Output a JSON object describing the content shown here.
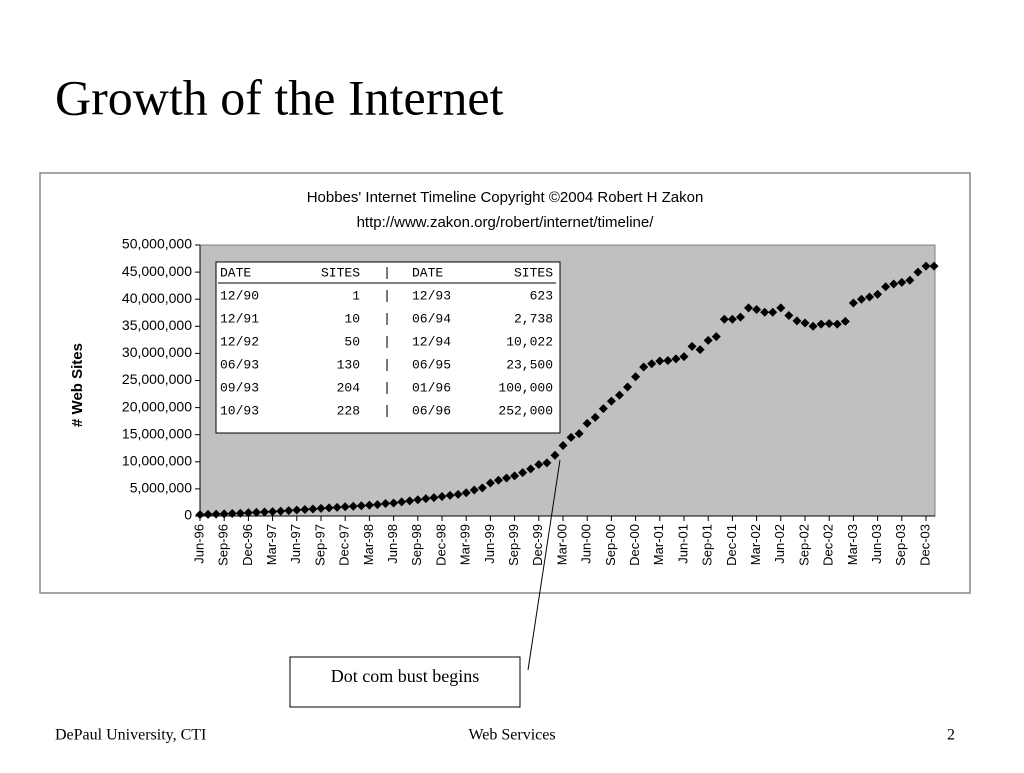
{
  "slide_title": "Growth of the Internet",
  "annotation": "Dot com bust begins",
  "footer": {
    "left": "DePaul University, CTI",
    "center": "Web Services",
    "right": "2"
  },
  "chart_data": {
    "type": "line",
    "show_line": false,
    "marker": "diamond",
    "title": "Hobbes' Internet Timeline Copyright ©2004 Robert H Zakon",
    "subtitle": "http://www.zakon.org/robert/internet/timeline/",
    "y_label": "# Web Sites",
    "plot_background": "#c0c0c0",
    "color": "#000000",
    "categories": [
      "Jun-96",
      null,
      null,
      "Sep-96",
      null,
      null,
      "Dec-96",
      null,
      null,
      "Mar-97",
      null,
      null,
      "Jun-97",
      null,
      null,
      "Sep-97",
      null,
      null,
      "Dec-97",
      null,
      null,
      "Mar-98",
      null,
      null,
      "Jun-98",
      null,
      null,
      "Sep-98",
      null,
      null,
      "Dec-98",
      null,
      null,
      "Mar-99",
      null,
      null,
      "Jun-99",
      null,
      null,
      "Sep-99",
      null,
      null,
      "Dec-99",
      null,
      null,
      "Mar-00",
      null,
      null,
      "Jun-00",
      null,
      null,
      "Sep-00",
      null,
      null,
      "Dec-00",
      null,
      null,
      "Mar-01",
      null,
      null,
      "Jun-01",
      null,
      null,
      "Sep-01",
      null,
      null,
      "Dec-01",
      null,
      null,
      "Mar-02",
      null,
      null,
      "Jun-02",
      null,
      null,
      "Sep-02",
      null,
      null,
      "Dec-02",
      null,
      null,
      "Mar-03",
      null,
      null,
      "Jun-03",
      null,
      null,
      "Sep-03",
      null,
      null,
      "Dec-03",
      null
    ],
    "values": [
      250000,
      300000,
      340000,
      400000,
      460000,
      500000,
      600000,
      680000,
      740000,
      800000,
      900000,
      1000000,
      1100000,
      1200000,
      1300000,
      1400000,
      1500000,
      1600000,
      1700000,
      1800000,
      1900000,
      2000000,
      2100000,
      2300000,
      2400000,
      2600000,
      2800000,
      3000000,
      3200000,
      3400000,
      3600000,
      3800000,
      4000000,
      4300000,
      4800000,
      5200000,
      6100000,
      6600000,
      7000000,
      7400000,
      8000000,
      8700000,
      9500000,
      9800000,
      11200000,
      13000000,
      14500000,
      15200000,
      17100000,
      18200000,
      19800000,
      21200000,
      22300000,
      23800000,
      25700000,
      27500000,
      28100000,
      28600000,
      28700000,
      29000000,
      29400000,
      31300000,
      30700000,
      32400000,
      33100000,
      36300000,
      36300000,
      36700000,
      38400000,
      38100000,
      37600000,
      37600000,
      38400000,
      37000000,
      36000000,
      35600000,
      35000000,
      35400000,
      35500000,
      35400000,
      35900000,
      39300000,
      40000000,
      40400000,
      40900000,
      42300000,
      42800000,
      43100000,
      43500000,
      45000000,
      46100000,
      46100000
    ],
    "ylim": [
      0,
      50000000
    ],
    "yticks": [
      0,
      {
        "value": 5000000,
        "label": "5,000,000"
      },
      {
        "value": 10000000,
        "label": "10,000,000"
      },
      {
        "value": 15000000,
        "label": "15,000,000"
      },
      {
        "value": 20000000,
        "label": "20,000,000"
      },
      {
        "value": 25000000,
        "label": "25,000,000"
      },
      {
        "value": 30000000,
        "label": "30,000,000"
      },
      {
        "value": 35000000,
        "label": "35,000,000"
      },
      {
        "value": 40000000,
        "label": "40,000,000"
      },
      {
        "value": 45000000,
        "label": "45,000,000"
      },
      {
        "value": 50000000,
        "label": "50,000,000"
      }
    ],
    "inset_table": {
      "separator": "|",
      "columns": [
        "DATE",
        "SITES",
        "DATE",
        "SITES"
      ],
      "rows": [
        [
          "12/90",
          "1",
          "12/93",
          "623"
        ],
        [
          "12/91",
          "10",
          "06/94",
          "2,738"
        ],
        [
          "12/92",
          "50",
          "12/94",
          "10,022"
        ],
        [
          "06/93",
          "130",
          "06/95",
          "23,500"
        ],
        [
          "09/93",
          "204",
          "01/96",
          "100,000"
        ],
        [
          "10/93",
          "228",
          "06/96",
          "252,000"
        ]
      ]
    }
  }
}
